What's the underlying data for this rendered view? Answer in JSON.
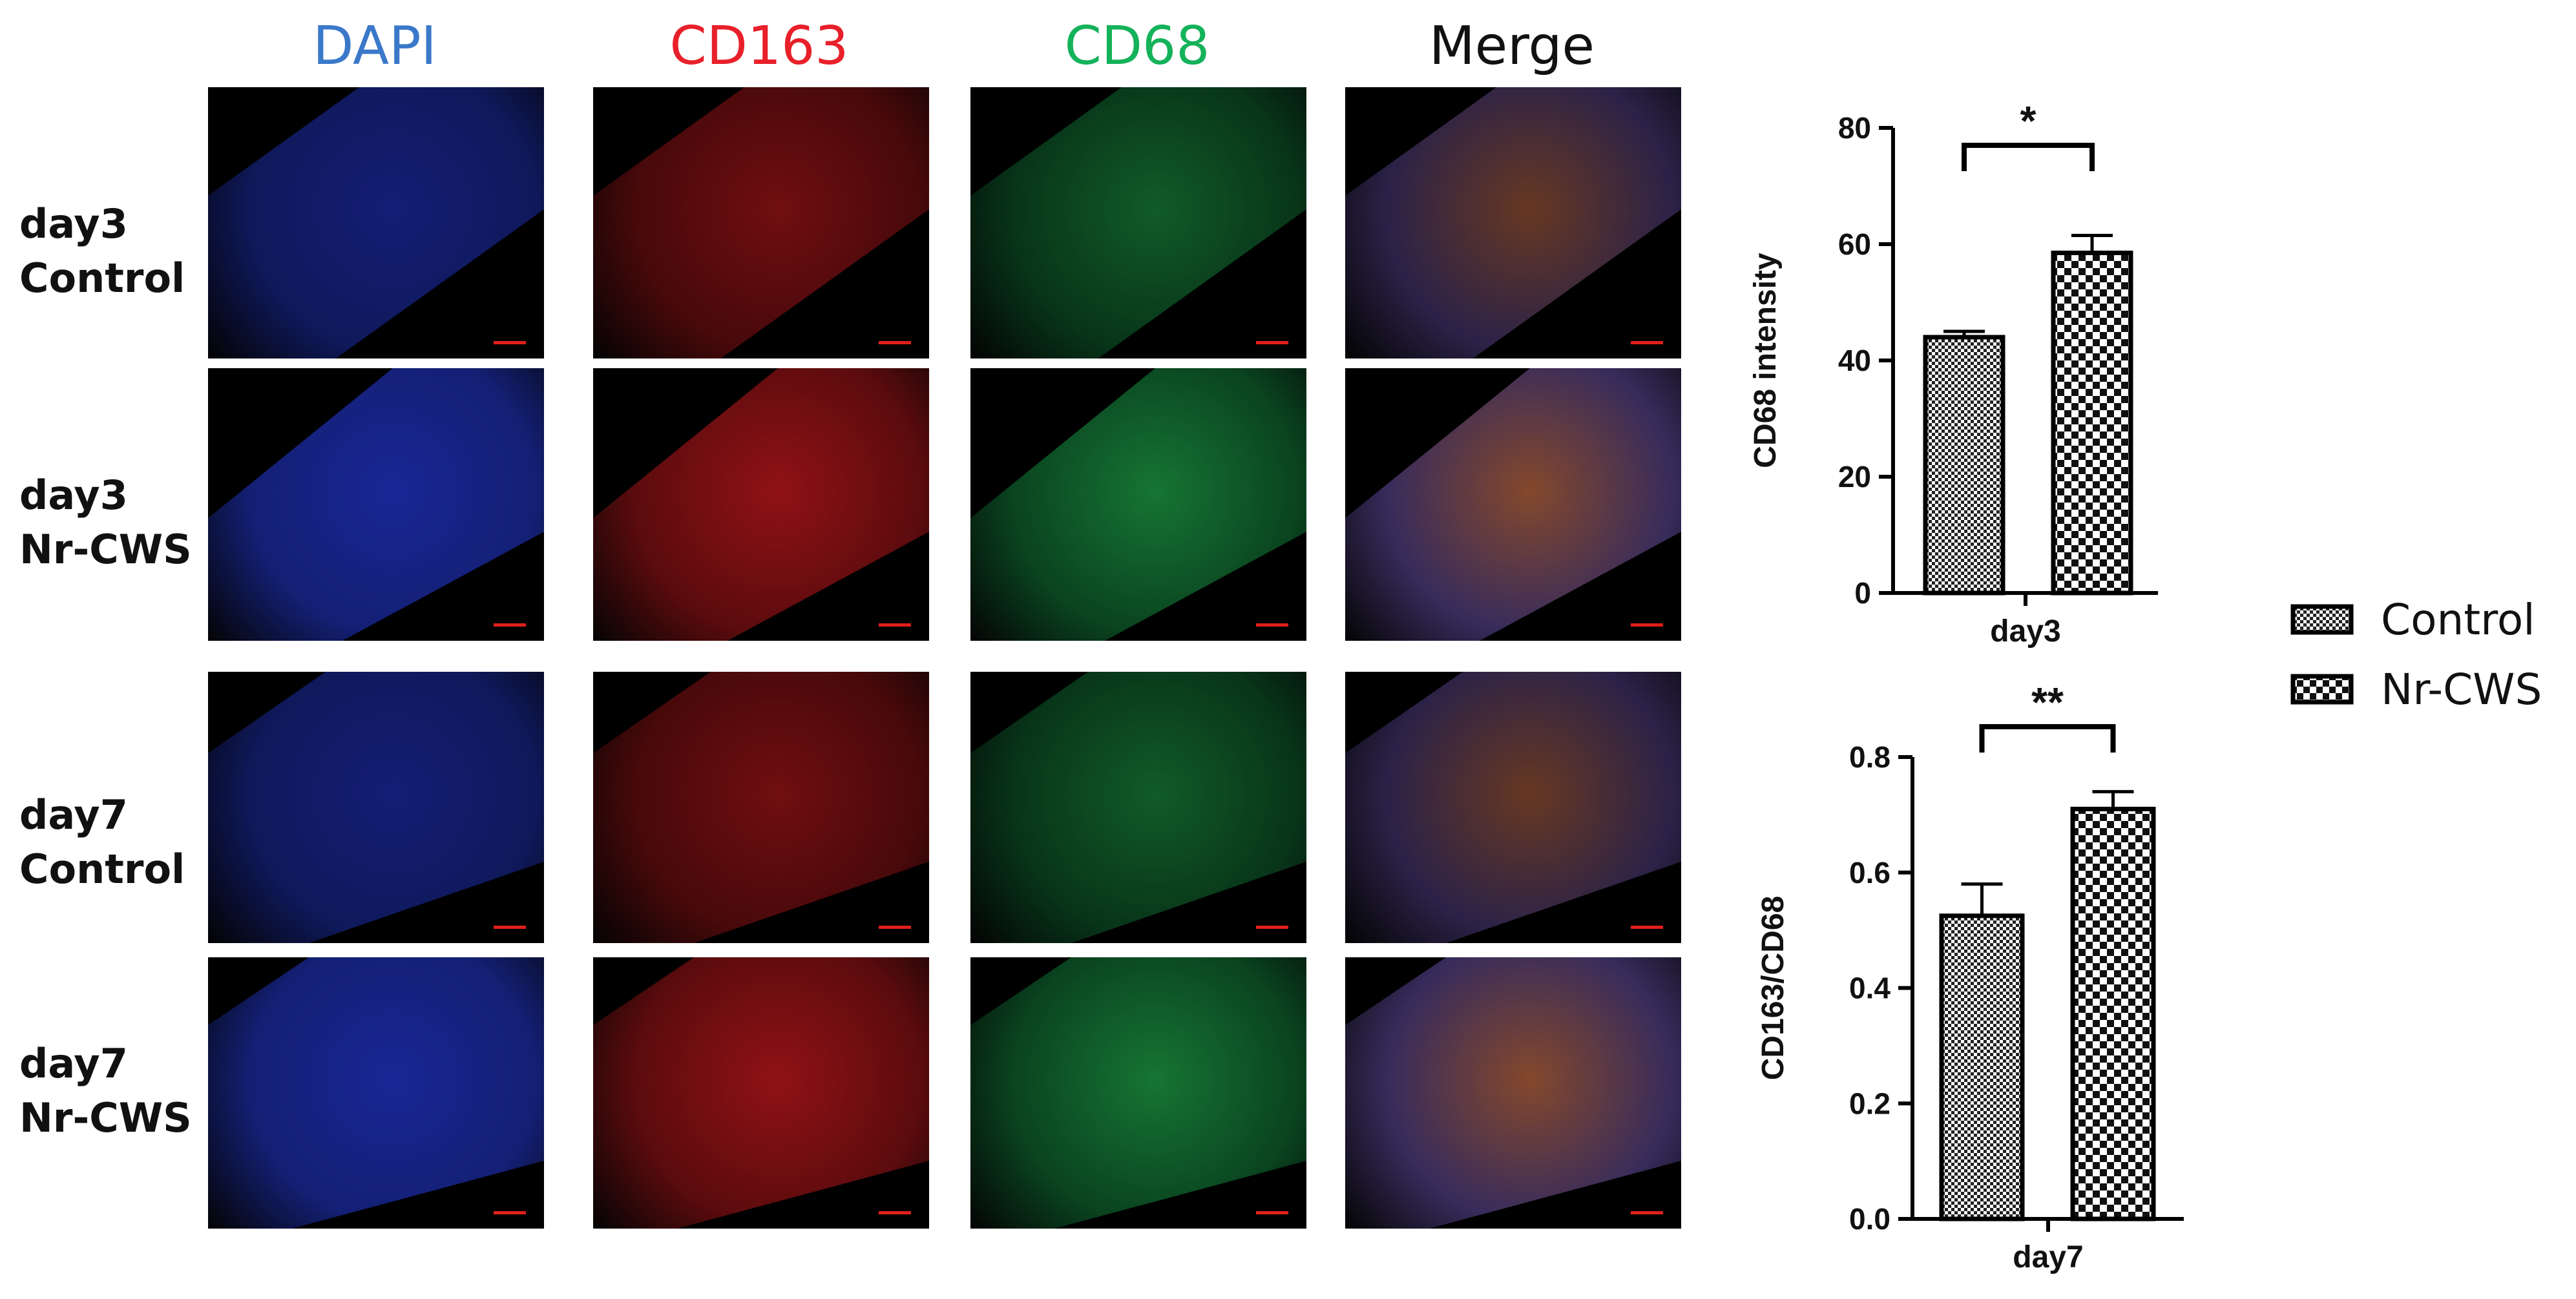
{
  "columns": [
    {
      "label": "DAPI",
      "color": "#3a78c9"
    },
    {
      "label": "CD163",
      "color": "#e8202a"
    },
    {
      "label": "CD68",
      "color": "#14b25a"
    },
    {
      "label": "Merge",
      "color": "#111111"
    }
  ],
  "rows": [
    {
      "line1": "day3",
      "line2": "Control"
    },
    {
      "line1": "day3",
      "line2": "Nr-CWS"
    },
    {
      "line1": "day7",
      "line2": "Control"
    },
    {
      "line1": "day7",
      "line2": "Nr-CWS"
    }
  ],
  "legend": [
    {
      "label": "Control",
      "pattern": "fine-check"
    },
    {
      "label": "Nr-CWS",
      "pattern": "coarse-check"
    }
  ],
  "chart_data": [
    {
      "type": "bar",
      "categories": [
        "day3"
      ],
      "series": [
        {
          "name": "Control",
          "values": [
            44
          ],
          "error": [
            1
          ]
        },
        {
          "name": "Nr-CWS",
          "values": [
            58.5
          ],
          "error": [
            3
          ]
        }
      ],
      "title": "",
      "xlabel": "day3",
      "ylabel": "CD68  intensity",
      "ylim": [
        0,
        80
      ],
      "yticks": [
        "0",
        "20",
        "40",
        "60",
        "80"
      ],
      "significance": "*",
      "grid": false
    },
    {
      "type": "bar",
      "categories": [
        "day7"
      ],
      "series": [
        {
          "name": "Control",
          "values": [
            0.525
          ],
          "error": [
            0.055
          ]
        },
        {
          "name": "Nr-CWS",
          "values": [
            0.71
          ],
          "error": [
            0.03
          ]
        }
      ],
      "title": "",
      "xlabel": "day7",
      "ylabel": "CD163/CD68",
      "ylim": [
        0,
        0.8
      ],
      "yticks": [
        "0.0",
        "0.2",
        "0.4",
        "0.6",
        "0.8"
      ],
      "significance": "**",
      "grid": false
    }
  ]
}
